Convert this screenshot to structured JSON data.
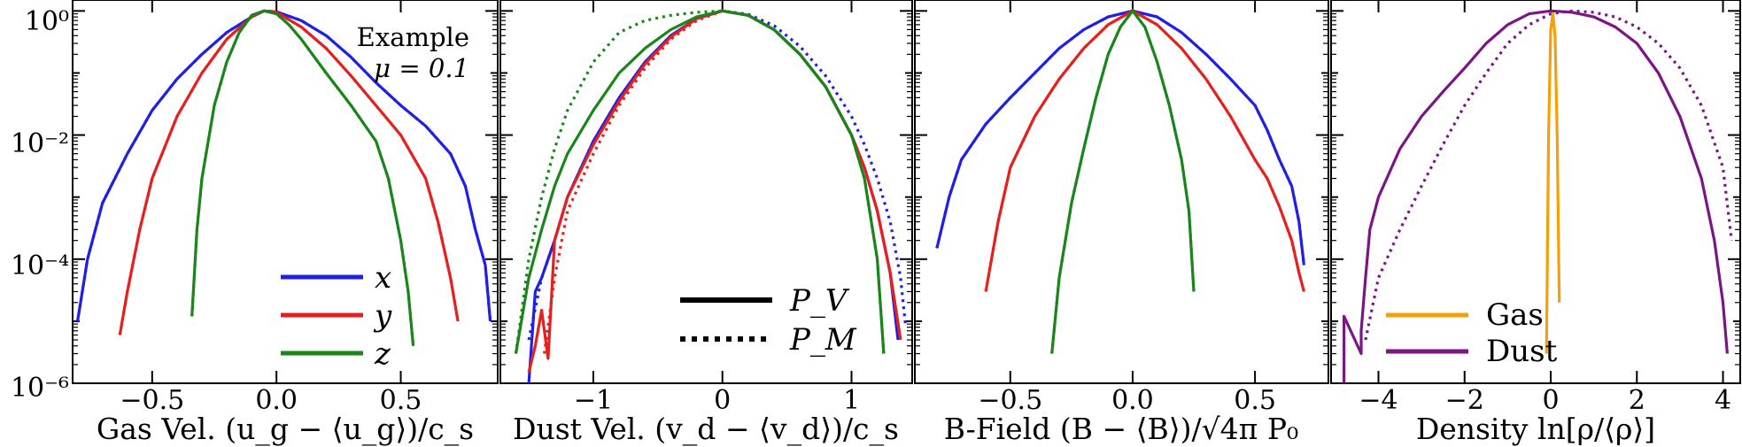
{
  "figure": {
    "y_scale": "log",
    "y_tick_labels": [
      "10⁰",
      "10⁻²",
      "10⁻⁴",
      "10⁻⁶"
    ],
    "panels": [
      {
        "xlabel": "Gas Vel. (u_g − ⟨u_g⟩)/c_s",
        "x_tick_labels": [
          "−0.5",
          "0.0",
          "0.5"
        ],
        "annotation": [
          "Example",
          "μ = 0.1"
        ]
      },
      {
        "xlabel": "Dust Vel. (v_d − ⟨v_d⟩)/c_s",
        "x_tick_labels": [
          "−1",
          "0",
          "1"
        ],
        "annotation": []
      },
      {
        "xlabel": "B-Field (B − ⟨B⟩)/√4π P₀",
        "x_tick_labels": [
          "−0.5",
          "0.0",
          "0.5"
        ],
        "annotation": []
      },
      {
        "xlabel": "Density ln[ρ/⟨ρ⟩]",
        "x_tick_labels": [
          "−4",
          "−2",
          "0",
          "2",
          "4"
        ],
        "annotation": []
      }
    ],
    "legends": {
      "components": [
        "x",
        "y",
        "z"
      ],
      "line_styles": [
        "P_V",
        "P_M"
      ],
      "density": [
        "Gas",
        "Dust"
      ]
    }
  },
  "colors": {
    "x": "#1f1fe6",
    "y": "#e61f1f",
    "z": "#1a851a",
    "gas": "#f5a00a",
    "dust": "#7a1585"
  },
  "chart_data": [
    {
      "type": "line",
      "y_scale": "log",
      "xlim": [
        -0.82,
        0.89
      ],
      "ylim": [
        1e-06,
        1.5
      ],
      "x_ticks": [
        -0.5,
        0.0,
        0.5
      ],
      "series": [
        {
          "name": "x",
          "style": "solid",
          "x": [
            -0.8,
            -0.76,
            -0.7,
            -0.6,
            -0.5,
            -0.4,
            -0.3,
            -0.2,
            -0.1,
            -0.05,
            0.0,
            0.1,
            0.2,
            0.3,
            0.4,
            0.5,
            0.6,
            0.7,
            0.76,
            0.8,
            0.84,
            0.86
          ],
          "y": [
            1e-05,
            0.0001,
            0.0008,
            0.005,
            0.025,
            0.08,
            0.2,
            0.45,
            0.8,
            1.0,
            0.97,
            0.7,
            0.4,
            0.18,
            0.07,
            0.03,
            0.014,
            0.005,
            0.0015,
            0.0003,
            8e-05,
            1e-05
          ]
        },
        {
          "name": "x",
          "style": "dotted",
          "x": [
            -0.8,
            -0.76,
            -0.7,
            -0.6,
            -0.5,
            -0.4,
            -0.3,
            -0.2,
            -0.1,
            -0.05,
            0.0,
            0.1,
            0.2,
            0.3,
            0.4,
            0.5,
            0.6,
            0.7,
            0.76,
            0.8,
            0.84,
            0.86
          ],
          "y": [
            1e-05,
            0.0001,
            0.0008,
            0.005,
            0.025,
            0.08,
            0.2,
            0.45,
            0.8,
            1.0,
            0.97,
            0.7,
            0.4,
            0.18,
            0.07,
            0.03,
            0.014,
            0.005,
            0.0015,
            0.0003,
            8e-05,
            1e-05
          ]
        },
        {
          "name": "y",
          "style": "solid",
          "x": [
            -0.63,
            -0.6,
            -0.55,
            -0.5,
            -0.4,
            -0.3,
            -0.2,
            -0.1,
            -0.05,
            0.0,
            0.1,
            0.2,
            0.3,
            0.4,
            0.5,
            0.6,
            0.65,
            0.7,
            0.73
          ],
          "y": [
            6e-06,
            3e-05,
            0.0003,
            0.002,
            0.02,
            0.1,
            0.35,
            0.8,
            1.0,
            0.95,
            0.55,
            0.25,
            0.09,
            0.03,
            0.01,
            0.002,
            0.0004,
            5e-05,
            1e-05
          ]
        },
        {
          "name": "y",
          "style": "dotted",
          "x": [
            -0.63,
            -0.6,
            -0.55,
            -0.5,
            -0.4,
            -0.3,
            -0.2,
            -0.1,
            -0.05,
            0.0,
            0.1,
            0.2,
            0.3,
            0.4,
            0.5,
            0.6,
            0.65,
            0.7,
            0.73
          ],
          "y": [
            6e-06,
            3e-05,
            0.0003,
            0.002,
            0.02,
            0.1,
            0.35,
            0.8,
            1.0,
            0.95,
            0.55,
            0.25,
            0.09,
            0.03,
            0.01,
            0.002,
            0.0004,
            5e-05,
            1e-05
          ]
        },
        {
          "name": "z",
          "style": "solid",
          "x": [
            -0.34,
            -0.32,
            -0.3,
            -0.25,
            -0.2,
            -0.15,
            -0.1,
            -0.05,
            0.0,
            0.05,
            0.1,
            0.2,
            0.3,
            0.4,
            0.45,
            0.5,
            0.53,
            0.55
          ],
          "y": [
            1.2e-05,
            0.0003,
            0.002,
            0.03,
            0.15,
            0.45,
            0.85,
            1.0,
            0.9,
            0.6,
            0.35,
            0.1,
            0.03,
            0.008,
            0.002,
            0.0002,
            3e-05,
            4e-06
          ]
        },
        {
          "name": "z",
          "style": "dotted",
          "x": [
            -0.34,
            -0.32,
            -0.3,
            -0.25,
            -0.2,
            -0.15,
            -0.1,
            -0.05,
            0.0,
            0.05,
            0.1,
            0.2,
            0.3,
            0.4,
            0.45,
            0.5,
            0.53,
            0.55
          ],
          "y": [
            1.2e-05,
            0.0003,
            0.002,
            0.03,
            0.15,
            0.45,
            0.85,
            1.0,
            0.9,
            0.6,
            0.35,
            0.1,
            0.03,
            0.008,
            0.002,
            0.0002,
            3e-05,
            4e-06
          ]
        }
      ]
    },
    {
      "type": "line",
      "y_scale": "log",
      "xlim": [
        -1.72,
        1.47
      ],
      "ylim": [
        1e-06,
        1.5
      ],
      "x_ticks": [
        -1,
        0,
        1
      ],
      "series": [
        {
          "name": "x",
          "style": "solid",
          "x": [
            -1.5,
            -1.45,
            -1.4,
            -1.3,
            -1.2,
            -1.0,
            -0.8,
            -0.6,
            -0.4,
            -0.2,
            0.0,
            0.2,
            0.4,
            0.6,
            0.8,
            1.0,
            1.1,
            1.2,
            1.3,
            1.36
          ],
          "y": [
            1e-06,
            3e-05,
            5e-05,
            0.0002,
            0.001,
            0.008,
            0.04,
            0.15,
            0.4,
            0.75,
            1.0,
            0.85,
            0.5,
            0.2,
            0.06,
            0.01,
            0.003,
            0.0006,
            6e-05,
            5e-06
          ]
        },
        {
          "name": "x",
          "style": "dotted",
          "x": [
            -1.5,
            -1.4,
            -1.3,
            -1.2,
            -1.0,
            -0.8,
            -0.6,
            -0.4,
            -0.2,
            0.0,
            0.2,
            0.4,
            0.6,
            0.8,
            1.0,
            1.1,
            1.2,
            1.3,
            1.38,
            1.42
          ],
          "y": [
            5e-06,
            5e-05,
            0.0002,
            0.001,
            0.008,
            0.04,
            0.15,
            0.4,
            0.75,
            1.0,
            0.88,
            0.58,
            0.27,
            0.09,
            0.02,
            0.007,
            0.002,
            0.0004,
            5e-05,
            8e-06
          ]
        },
        {
          "name": "y",
          "style": "solid",
          "x": [
            -1.5,
            -1.45,
            -1.4,
            -1.35,
            -1.3,
            -1.2,
            -1.0,
            -0.8,
            -0.6,
            -0.4,
            -0.2,
            0.0,
            0.2,
            0.4,
            0.6,
            0.8,
            1.0,
            1.1,
            1.2,
            1.3,
            1.38
          ],
          "y": [
            1.5e-06,
            4e-06,
            1.5e-05,
            2.5e-06,
            0.0002,
            0.001,
            0.007,
            0.035,
            0.14,
            0.38,
            0.75,
            1.0,
            0.85,
            0.5,
            0.2,
            0.06,
            0.01,
            0.003,
            0.0006,
            6e-05,
            5e-06
          ]
        },
        {
          "name": "y",
          "style": "dotted",
          "x": [
            -1.38,
            -1.3,
            -1.2,
            -1.0,
            -0.8,
            -0.6,
            -0.4,
            -0.2,
            0.0,
            0.2,
            0.4,
            0.6,
            0.8,
            1.0,
            1.1,
            1.2,
            1.3,
            1.38
          ],
          "y": [
            3e-06,
            5e-05,
            0.0006,
            0.005,
            0.03,
            0.12,
            0.35,
            0.7,
            1.0,
            0.85,
            0.5,
            0.2,
            0.06,
            0.01,
            0.003,
            0.0006,
            6e-05,
            5e-06
          ]
        },
        {
          "name": "z",
          "style": "solid",
          "x": [
            -1.6,
            -1.5,
            -1.4,
            -1.3,
            -1.2,
            -1.0,
            -0.8,
            -0.6,
            -0.4,
            -0.2,
            0.0,
            0.2,
            0.4,
            0.6,
            0.8,
            1.0,
            1.1,
            1.2,
            1.25
          ],
          "y": [
            3e-06,
            5e-05,
            0.0003,
            0.0015,
            0.005,
            0.025,
            0.1,
            0.25,
            0.5,
            0.8,
            1.0,
            0.85,
            0.5,
            0.2,
            0.06,
            0.01,
            0.002,
            0.0001,
            3e-06
          ]
        },
        {
          "name": "z",
          "style": "dotted",
          "x": [
            -1.6,
            -1.5,
            -1.4,
            -1.3,
            -1.2,
            -1.0,
            -0.8,
            -0.6,
            -0.4,
            -0.2,
            0.0,
            0.2,
            0.4,
            0.6,
            0.8,
            1.0,
            1.1,
            1.2,
            1.25
          ],
          "y": [
            3e-06,
            0.0001,
            0.001,
            0.006,
            0.025,
            0.15,
            0.45,
            0.7,
            0.85,
            0.95,
            1.0,
            0.85,
            0.5,
            0.2,
            0.06,
            0.01,
            0.002,
            0.0001,
            3e-06
          ]
        }
      ]
    },
    {
      "type": "line",
      "y_scale": "log",
      "xlim": [
        -0.89,
        0.8
      ],
      "ylim": [
        1e-06,
        1.5
      ],
      "x_ticks": [
        -0.5,
        0.0,
        0.5
      ],
      "series": [
        {
          "name": "x",
          "style": "solid",
          "x": [
            -0.8,
            -0.75,
            -0.7,
            -0.6,
            -0.5,
            -0.4,
            -0.3,
            -0.2,
            -0.1,
            0.0,
            0.1,
            0.2,
            0.3,
            0.4,
            0.5,
            0.55,
            0.6,
            0.65,
            0.68,
            0.7
          ],
          "y": [
            0.00015,
            0.001,
            0.004,
            0.015,
            0.04,
            0.1,
            0.25,
            0.5,
            0.8,
            1.0,
            0.8,
            0.45,
            0.2,
            0.08,
            0.03,
            0.012,
            0.004,
            0.0015,
            0.0004,
            8e-05
          ]
        },
        {
          "name": "x",
          "style": "dotted",
          "x": [
            -0.8,
            -0.75,
            -0.7,
            -0.6,
            -0.5,
            -0.4,
            -0.3,
            -0.2,
            -0.1,
            0.0,
            0.1,
            0.2,
            0.3,
            0.4,
            0.5,
            0.55,
            0.6,
            0.65,
            0.68,
            0.7
          ],
          "y": [
            0.00015,
            0.001,
            0.004,
            0.015,
            0.04,
            0.1,
            0.25,
            0.5,
            0.8,
            1.0,
            0.8,
            0.45,
            0.2,
            0.08,
            0.03,
            0.012,
            0.004,
            0.0015,
            0.0004,
            8e-05
          ]
        },
        {
          "name": "y",
          "style": "solid",
          "x": [
            -0.6,
            -0.55,
            -0.5,
            -0.4,
            -0.3,
            -0.2,
            -0.1,
            0.0,
            0.1,
            0.2,
            0.3,
            0.4,
            0.5,
            0.55,
            0.6,
            0.65,
            0.68,
            0.7
          ],
          "y": [
            3e-05,
            0.0004,
            0.003,
            0.02,
            0.08,
            0.25,
            0.6,
            1.0,
            0.6,
            0.25,
            0.08,
            0.02,
            0.004,
            0.002,
            0.0007,
            0.0002,
            6e-05,
            3e-05
          ]
        },
        {
          "name": "y",
          "style": "dotted",
          "x": [
            -0.6,
            -0.55,
            -0.5,
            -0.4,
            -0.3,
            -0.2,
            -0.1,
            0.0,
            0.1,
            0.2,
            0.3,
            0.4,
            0.5,
            0.55,
            0.6,
            0.65,
            0.68,
            0.7
          ],
          "y": [
            3e-05,
            0.0004,
            0.003,
            0.02,
            0.08,
            0.25,
            0.6,
            1.0,
            0.6,
            0.25,
            0.08,
            0.02,
            0.004,
            0.002,
            0.0007,
            0.0002,
            6e-05,
            3e-05
          ]
        },
        {
          "name": "z",
          "style": "solid",
          "x": [
            -0.33,
            -0.3,
            -0.25,
            -0.2,
            -0.15,
            -0.1,
            -0.05,
            0.0,
            0.05,
            0.1,
            0.15,
            0.2,
            0.23,
            0.25
          ],
          "y": [
            3e-06,
            5e-05,
            0.0008,
            0.006,
            0.04,
            0.2,
            0.55,
            1.0,
            0.55,
            0.15,
            0.03,
            0.004,
            0.0006,
            3e-05
          ]
        },
        {
          "name": "z",
          "style": "dotted",
          "x": [
            -0.33,
            -0.3,
            -0.25,
            -0.2,
            -0.15,
            -0.1,
            -0.05,
            0.0,
            0.05,
            0.1,
            0.15,
            0.2,
            0.23,
            0.25
          ],
          "y": [
            3e-06,
            5e-05,
            0.0008,
            0.006,
            0.04,
            0.2,
            0.55,
            1.0,
            0.55,
            0.15,
            0.03,
            0.004,
            0.0006,
            3e-05
          ]
        }
      ]
    },
    {
      "type": "line",
      "y_scale": "log",
      "xlim": [
        -5.1,
        4.4
      ],
      "ylim": [
        1e-06,
        1.5
      ],
      "x_ticks": [
        -4,
        -2,
        0,
        2,
        4
      ],
      "series": [
        {
          "name": "Gas",
          "style": "solid",
          "x": [
            -0.1,
            -0.05,
            0.0,
            0.05,
            0.1,
            0.15,
            0.2
          ],
          "y": [
            3e-06,
            0.01,
            0.5,
            0.9,
            0.4,
            0.01,
            2e-05
          ]
        },
        {
          "name": "Dust",
          "style": "solid",
          "x": [
            -4.8,
            -4.8,
            -4.4,
            -4.4,
            -4.3,
            -4.2,
            -4.0,
            -3.5,
            -3.0,
            -2.5,
            -2.0,
            -1.5,
            -1.0,
            -0.5,
            0.0,
            0.5,
            1.0,
            1.5,
            2.0,
            2.5,
            3.0,
            3.5,
            3.8,
            4.0,
            4.1
          ],
          "y": [
            1e-06,
            1.2e-05,
            3e-06,
            7e-06,
            5e-05,
            0.0003,
            0.001,
            0.006,
            0.02,
            0.05,
            0.12,
            0.3,
            0.6,
            0.9,
            1.0,
            0.95,
            0.8,
            0.55,
            0.3,
            0.1,
            0.02,
            0.002,
            0.0002,
            2e-05,
            3e-06
          ]
        },
        {
          "name": "Dust",
          "style": "dotted",
          "x": [
            -4.3,
            -4.0,
            -3.5,
            -3.0,
            -2.5,
            -2.0,
            -1.5,
            -1.0,
            -0.5,
            0.0,
            0.5,
            1.0,
            1.5,
            2.0,
            2.5,
            3.0,
            3.5,
            4.0,
            4.2
          ],
          "y": [
            5e-06,
            5e-05,
            0.0003,
            0.0015,
            0.007,
            0.03,
            0.1,
            0.3,
            0.6,
            0.9,
            1.0,
            0.95,
            0.8,
            0.55,
            0.3,
            0.12,
            0.03,
            0.003,
            0.0002
          ]
        }
      ]
    }
  ]
}
